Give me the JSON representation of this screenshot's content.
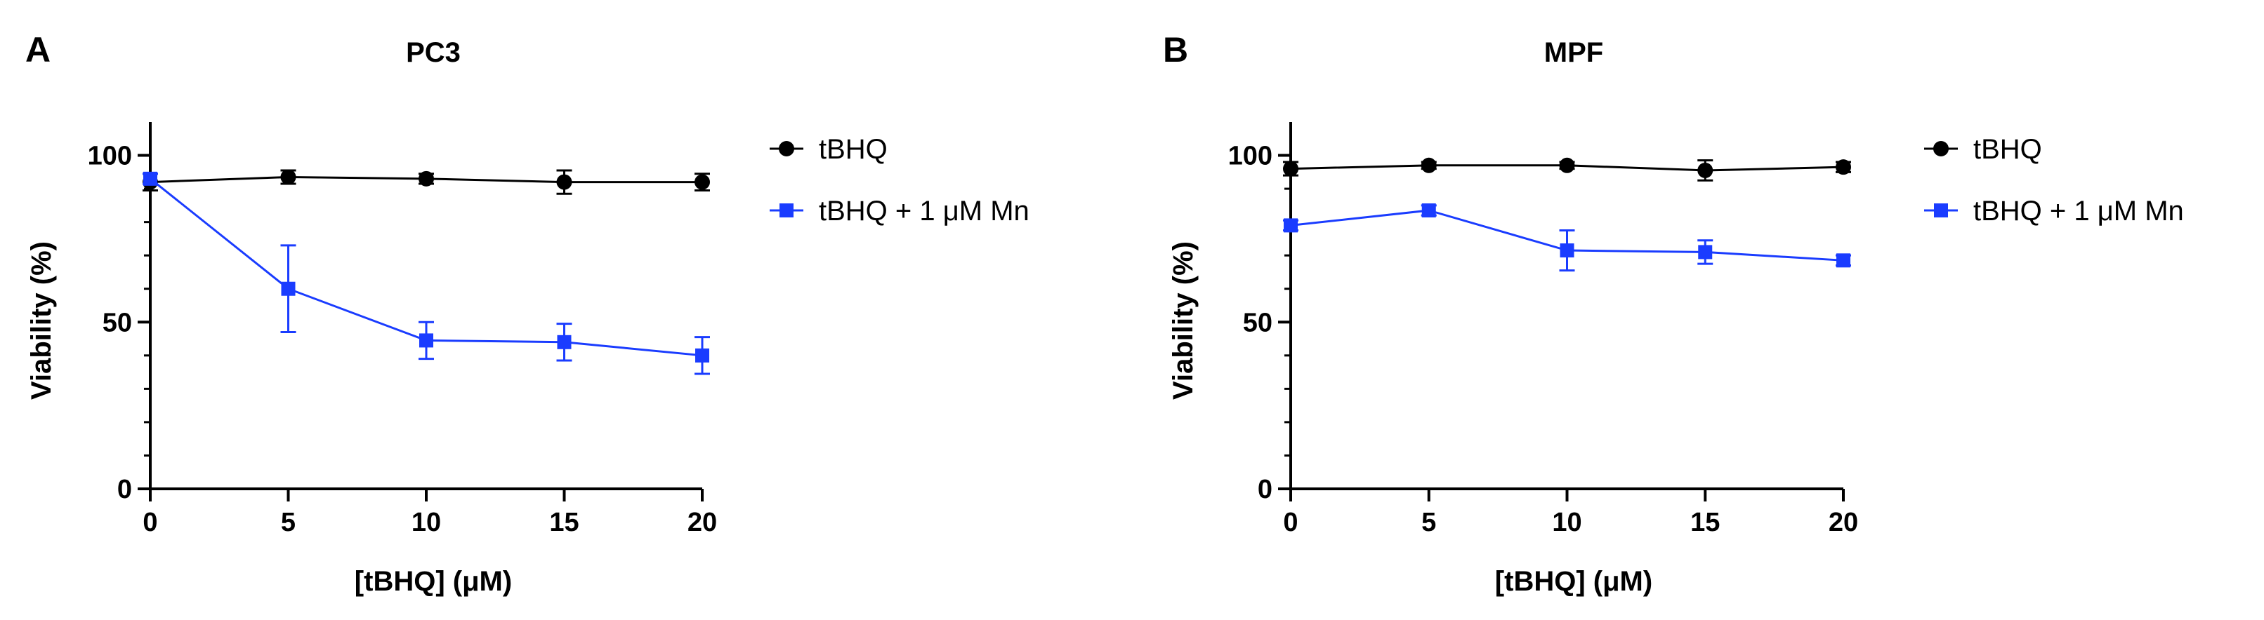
{
  "figure": {
    "panels": [
      "A",
      "B"
    ]
  },
  "chart_data": [
    {
      "type": "line",
      "panel_label": "A",
      "title": "PC3",
      "xlabel": "[tBHQ] (μM)",
      "ylabel": "Viability (%)",
      "x": [
        0,
        5,
        10,
        15,
        20
      ],
      "xlim": [
        0,
        20
      ],
      "ylim": [
        0,
        110
      ],
      "xticks": [
        0,
        5,
        10,
        15,
        20
      ],
      "yticks": [
        0,
        50,
        100
      ],
      "grid": false,
      "legend_position": "right",
      "series": [
        {
          "name": "tBHQ",
          "marker": "circle",
          "color": "#000000",
          "values": [
            92,
            93.5,
            93,
            92,
            92
          ],
          "error": [
            2.5,
            2,
            1.5,
            3.5,
            2.5
          ]
        },
        {
          "name": "tBHQ + 1 μM Mn",
          "marker": "square",
          "color": "#1a3cff",
          "values": [
            93,
            60,
            44.5,
            44,
            40
          ],
          "error": [
            1.5,
            13,
            5.5,
            5.5,
            5.5
          ]
        }
      ]
    },
    {
      "type": "line",
      "panel_label": "B",
      "title": "MPF",
      "xlabel": "[tBHQ] (μM)",
      "ylabel": "Viability (%)",
      "x": [
        0,
        5,
        10,
        15,
        20
      ],
      "xlim": [
        0,
        20
      ],
      "ylim": [
        0,
        110
      ],
      "xticks": [
        0,
        5,
        10,
        15,
        20
      ],
      "yticks": [
        0,
        50,
        100
      ],
      "grid": false,
      "legend_position": "right",
      "series": [
        {
          "name": "tBHQ",
          "marker": "circle",
          "color": "#000000",
          "values": [
            96,
            97,
            97,
            95.5,
            96.5
          ],
          "error": [
            2,
            1,
            1,
            3,
            1.5
          ]
        },
        {
          "name": "tBHQ + 1 μM Mn",
          "marker": "square",
          "color": "#1a3cff",
          "values": [
            79,
            83.5,
            71.5,
            71,
            68.5
          ],
          "error": [
            1.5,
            1.5,
            6,
            3.5,
            1.5
          ]
        }
      ]
    }
  ]
}
